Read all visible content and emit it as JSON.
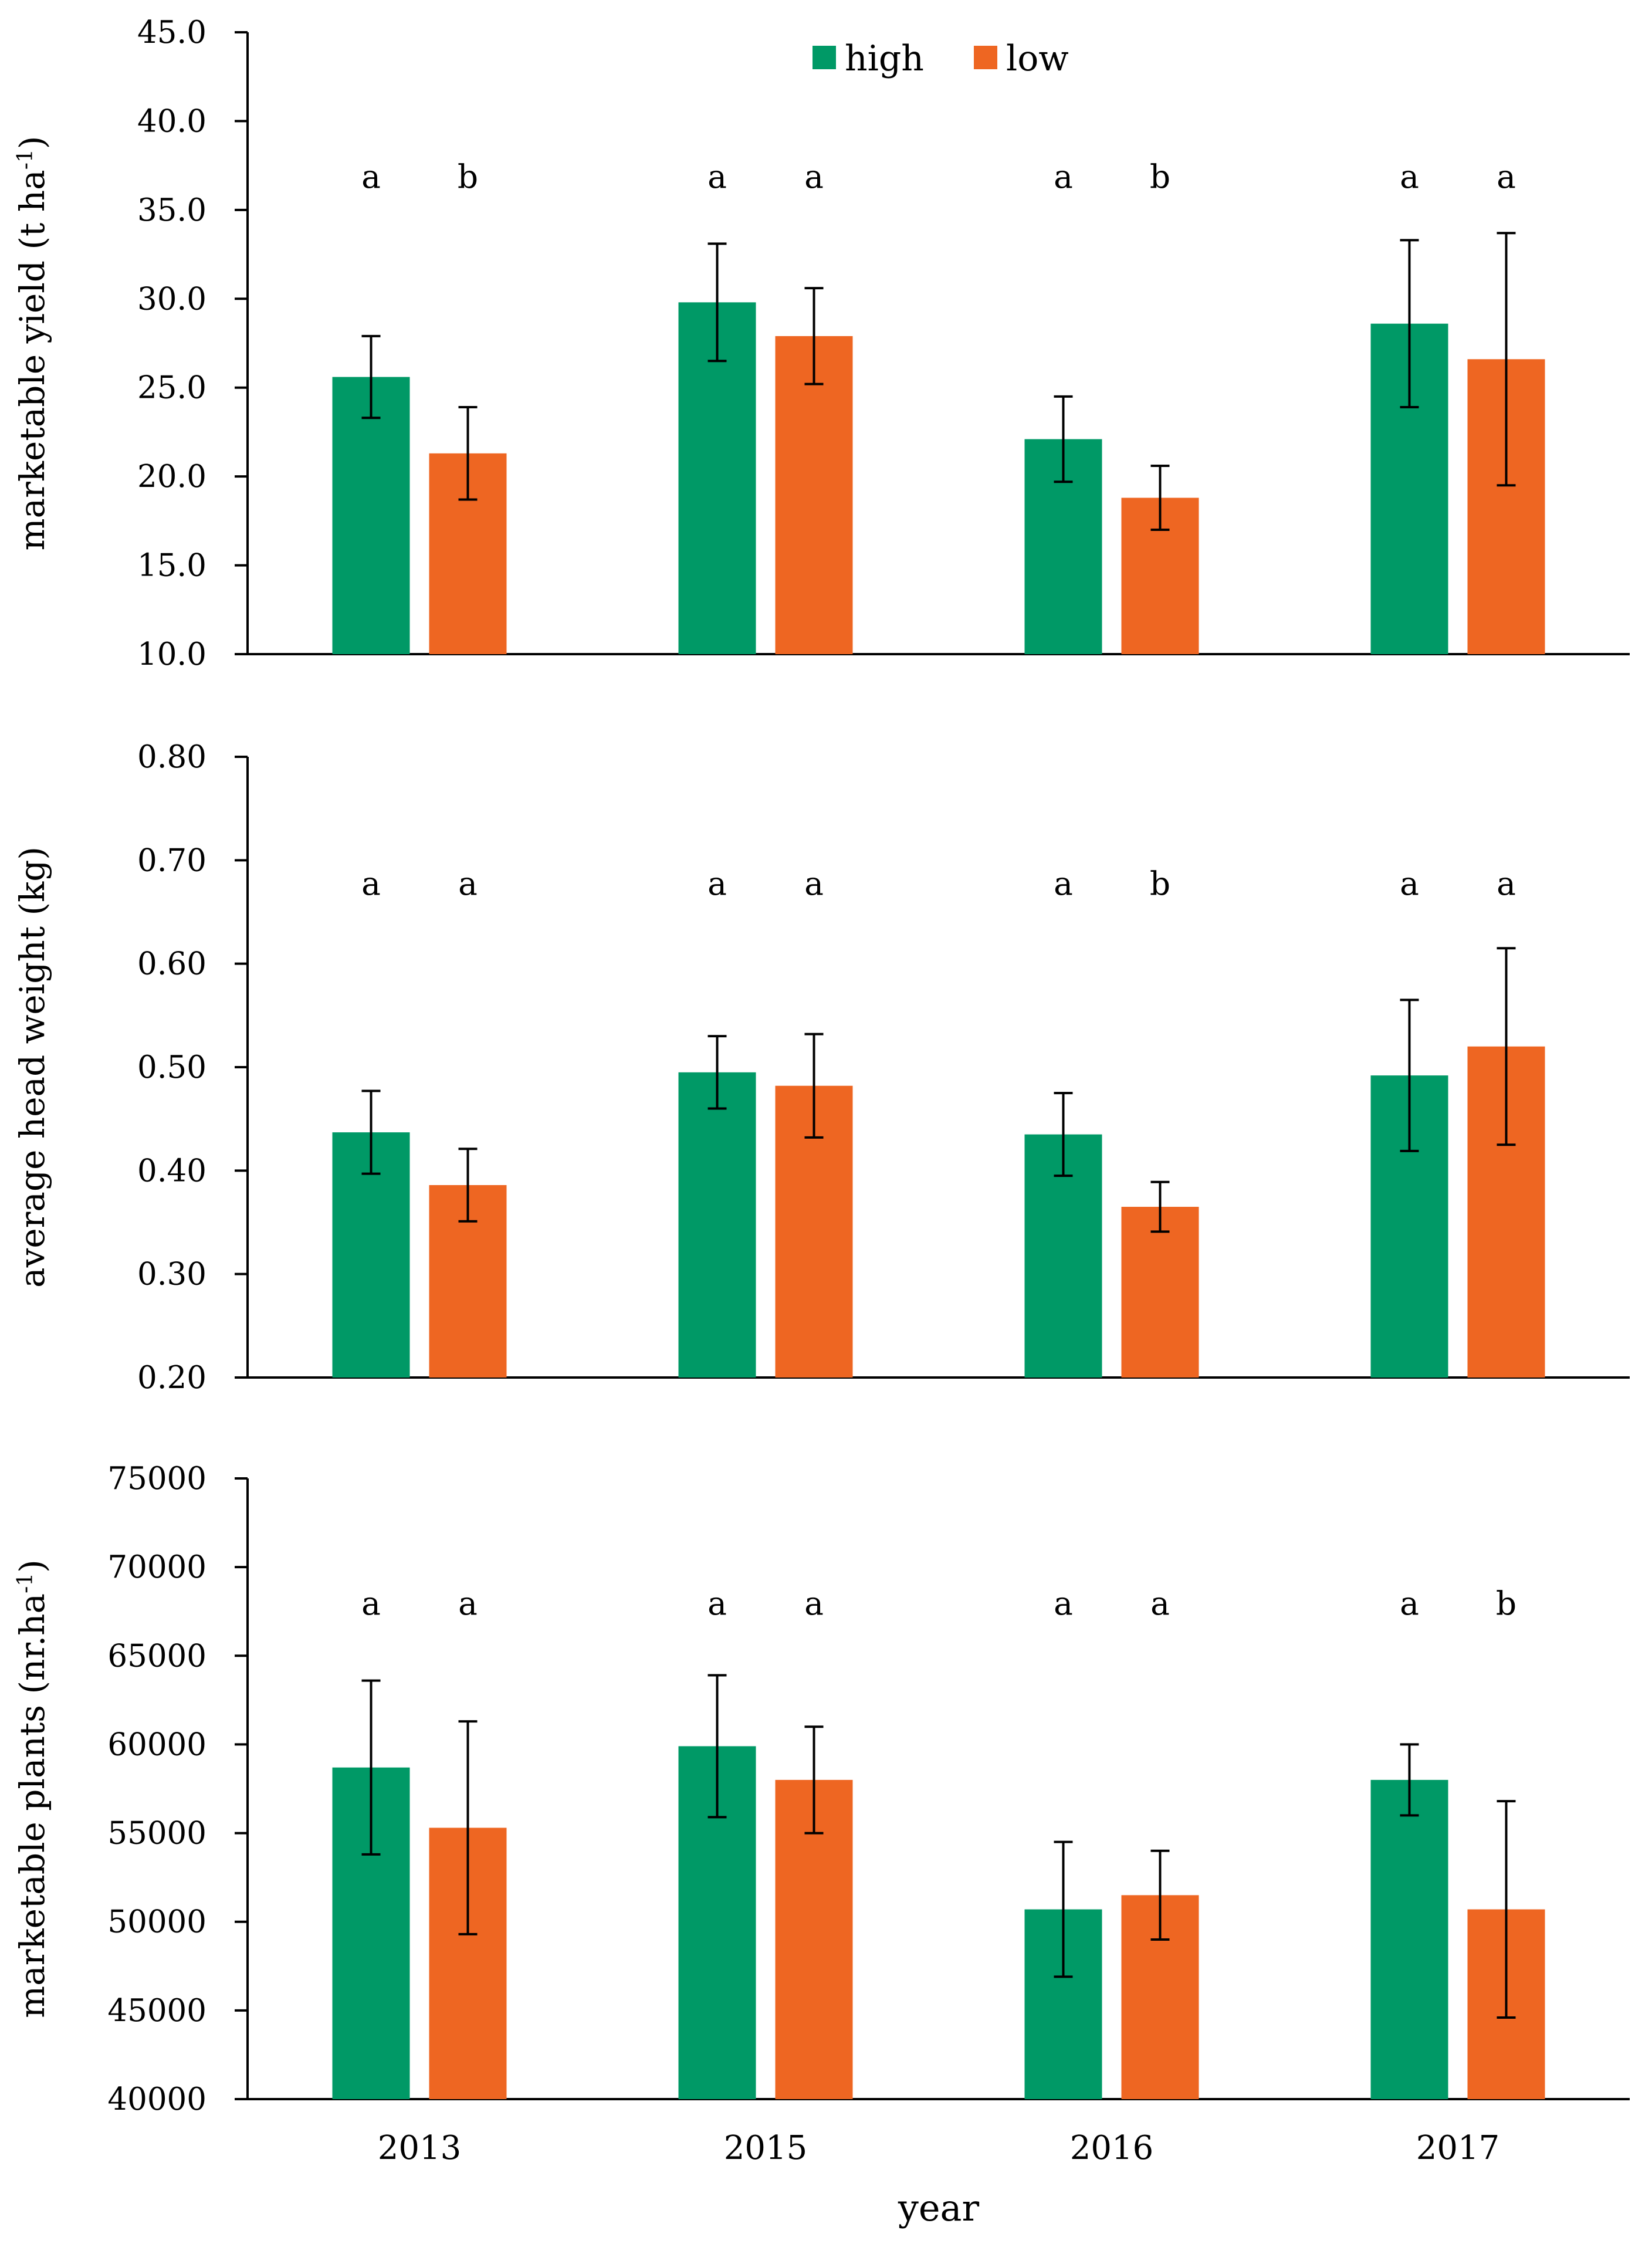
{
  "colors": {
    "high": "#009966",
    "low": "#EE6622",
    "axis": "#000000"
  },
  "legend": {
    "high_label": "high",
    "low_label": "low",
    "placement": "top-center"
  },
  "xaxis": {
    "label": "year"
  },
  "chart_data": [
    {
      "type": "bar",
      "categories": [
        "2013",
        "2015",
        "2016",
        "2017"
      ],
      "ylabel": "marketable yield (t ha",
      "ylabel_sup": "-1",
      "ylabel_close": ")",
      "ylim": [
        10.0,
        45.0
      ],
      "yticks": [
        "10.0",
        "15.0",
        "20.0",
        "25.0",
        "30.0",
        "35.0",
        "40.0",
        "45.0"
      ],
      "series": [
        {
          "name": "high",
          "values": [
            25.6,
            29.8,
            22.1,
            28.6
          ],
          "errors": [
            2.3,
            3.3,
            2.4,
            4.7
          ],
          "letters": [
            "a",
            "a",
            "a",
            "a"
          ]
        },
        {
          "name": "low",
          "values": [
            21.3,
            27.9,
            18.8,
            26.6
          ],
          "errors": [
            2.6,
            2.7,
            1.8,
            7.1
          ],
          "letters": [
            "b",
            "a",
            "b",
            "a"
          ]
        }
      ]
    },
    {
      "type": "bar",
      "categories": [
        "2013",
        "2015",
        "2016",
        "2017"
      ],
      "ylabel": "average head weight (kg)",
      "ylim": [
        0.2,
        0.8
      ],
      "yticks": [
        "0.20",
        "0.30",
        "0.40",
        "0.50",
        "0.60",
        "0.70",
        "0.80"
      ],
      "series": [
        {
          "name": "high",
          "values": [
            0.437,
            0.495,
            0.435,
            0.492
          ],
          "errors": [
            0.04,
            0.035,
            0.04,
            0.073
          ],
          "letters": [
            "a",
            "a",
            "a",
            "a"
          ]
        },
        {
          "name": "low",
          "values": [
            0.386,
            0.482,
            0.365,
            0.52
          ],
          "errors": [
            0.035,
            0.05,
            0.024,
            0.095
          ],
          "letters": [
            "a",
            "a",
            "b",
            "a"
          ]
        }
      ]
    },
    {
      "type": "bar",
      "categories": [
        "2013",
        "2015",
        "2016",
        "2017"
      ],
      "ylabel": "marketable plants (nr.ha",
      "ylabel_sup": "-1",
      "ylabel_close": ")",
      "ylim": [
        40000,
        75000
      ],
      "yticks": [
        "40000",
        "45000",
        "50000",
        "55000",
        "60000",
        "65000",
        "70000",
        "75000"
      ],
      "series": [
        {
          "name": "high",
          "values": [
            58700,
            59900,
            50700,
            58000
          ],
          "errors": [
            4900,
            4000,
            3800,
            2000
          ],
          "letters": [
            "a",
            "a",
            "a",
            "a"
          ]
        },
        {
          "name": "low",
          "values": [
            55300,
            58000,
            51500,
            50700
          ],
          "errors": [
            6000,
            3000,
            2500,
            6100
          ],
          "letters": [
            "a",
            "a",
            "a",
            "b"
          ]
        }
      ]
    }
  ]
}
